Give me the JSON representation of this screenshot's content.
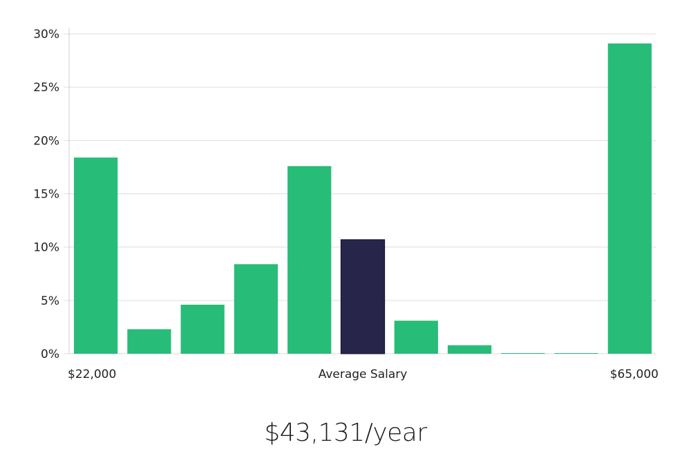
{
  "chart_data": {
    "type": "bar",
    "title": "",
    "xlabel": "Average Salary",
    "ylabel": "",
    "x_start_label": "$22,000",
    "x_end_label": "$65,000",
    "ylim": [
      0,
      30
    ],
    "yticks": [
      0,
      5,
      10,
      15,
      20,
      25,
      30
    ],
    "ytick_labels": [
      "0%",
      "5%",
      "10%",
      "15%",
      "20%",
      "25%",
      "30%"
    ],
    "grid": true,
    "values": [
      18.4,
      2.3,
      4.6,
      8.4,
      17.6,
      10.7,
      3.1,
      0.8,
      0.05,
      0.05,
      29.1
    ],
    "highlight_index": 5,
    "colors": {
      "bar": "#27bd78",
      "highlight": "#27264a",
      "grid": "#dddddd",
      "axis": "#cccccc"
    }
  },
  "summary": {
    "average_salary": "$43,131/year"
  }
}
